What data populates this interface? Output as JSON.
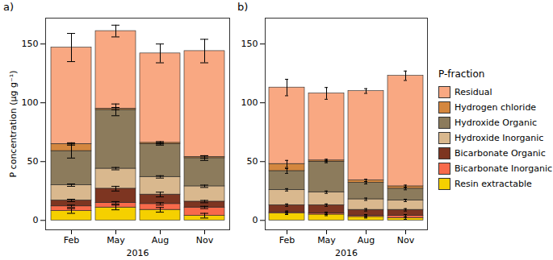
{
  "chart_data": [
    {
      "type": "bar",
      "stacked": true,
      "title": "a)",
      "categories": [
        "Feb",
        "May",
        "Aug",
        "Nov"
      ],
      "x_label": "2016",
      "y_label": "P concentration (μg g⁻¹)",
      "ylim": [
        -8,
        172
      ],
      "yticks": [
        0,
        50,
        100,
        150
      ],
      "grid": false,
      "series": [
        {
          "name": "Resin extractable",
          "color": "#f5d000",
          "values": [
            8,
            11,
            9,
            4
          ],
          "errors": [
            2,
            2,
            2,
            2
          ]
        },
        {
          "name": "Bicarbonate Inorganic",
          "color": "#f86a4b",
          "values": [
            4,
            4,
            5,
            7
          ],
          "errors": [
            1,
            1,
            1,
            1
          ]
        },
        {
          "name": "Bicarbonate Organic",
          "color": "#7d3521",
          "values": [
            5,
            12,
            8,
            5
          ],
          "errors": [
            1,
            2,
            2,
            1
          ]
        },
        {
          "name": "Hydroxide Inorganic",
          "color": "#d9b88e",
          "values": [
            13,
            17,
            15,
            13
          ],
          "errors": [
            1,
            1,
            1,
            1
          ]
        },
        {
          "name": "Hydroxide Organic",
          "color": "#8c7b5c",
          "values": [
            29,
            50,
            28,
            24
          ],
          "errors": [
            6,
            5,
            1,
            2
          ]
        },
        {
          "name": "Hydrogen chloride",
          "color": "#d4873f",
          "values": [
            6,
            1,
            1,
            1
          ],
          "errors": [
            1,
            1,
            1,
            1
          ]
        },
        {
          "name": "Residual",
          "color": "#f9a882",
          "values": [
            82,
            66,
            76,
            90
          ],
          "errors": [
            12,
            5,
            8,
            10
          ]
        }
      ]
    },
    {
      "type": "bar",
      "stacked": true,
      "title": "b)",
      "categories": [
        "Feb",
        "May",
        "Aug",
        "Nov"
      ],
      "x_label": "2016",
      "ylim": [
        -8,
        172
      ],
      "yticks": [
        0,
        50,
        100,
        150
      ],
      "grid": false,
      "legend": "right",
      "legend_title": "P-fraction",
      "series": [
        {
          "name": "Resin extractable",
          "color": "#f5d000",
          "values": [
            6,
            5,
            3,
            2
          ],
          "errors": [
            1,
            1,
            1,
            1
          ]
        },
        {
          "name": "Bicarbonate Inorganic",
          "color": "#f86a4b",
          "values": [
            1,
            1,
            1,
            2
          ],
          "errors": [
            1,
            1,
            1,
            1
          ]
        },
        {
          "name": "Bicarbonate Organic",
          "color": "#7d3521",
          "values": [
            6,
            7,
            5,
            5
          ],
          "errors": [
            1,
            1,
            1,
            1
          ]
        },
        {
          "name": "Hydroxide Inorganic",
          "color": "#d9b88e",
          "values": [
            13,
            11,
            9,
            8
          ],
          "errors": [
            1,
            1,
            1,
            1
          ]
        },
        {
          "name": "Hydroxide Organic",
          "color": "#8c7b5c",
          "values": [
            16,
            26,
            14,
            10
          ],
          "errors": [
            2,
            1,
            1,
            1
          ]
        },
        {
          "name": "Hydrogen chloride",
          "color": "#d4873f",
          "values": [
            6,
            1,
            2,
            2
          ],
          "errors": [
            3,
            1,
            1,
            1
          ]
        },
        {
          "name": "Residual",
          "color": "#f9a882",
          "values": [
            65,
            57,
            76,
            94
          ],
          "errors": [
            7,
            5,
            2,
            4
          ]
        }
      ]
    }
  ]
}
